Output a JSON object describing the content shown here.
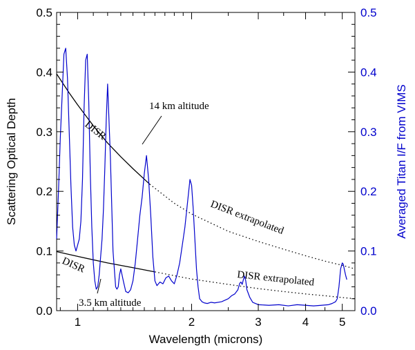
{
  "chart_data": {
    "type": "line",
    "xlabel": "Wavelength (microns)",
    "ylabel": "Scattering Optical Depth",
    "y2label": "Averaged Titan I/F from VIMS",
    "x_scale": "log",
    "xlim": [
      0.88,
      5.4
    ],
    "ylim": [
      0,
      0.5
    ],
    "y2lim": [
      0,
      0.5
    ],
    "x_ticks": [
      1,
      2,
      3,
      4,
      5
    ],
    "x_tick_labels": [
      "1",
      "2",
      "3",
      "4",
      "5"
    ],
    "y_ticks": [
      0.0,
      0.1,
      0.2,
      0.3,
      0.4,
      0.5
    ],
    "y_tick_labels": [
      "0.0",
      "0.1",
      "0.2",
      "0.3",
      "0.4",
      "0.5"
    ],
    "y2_ticks": [
      0.0,
      0.1,
      0.2,
      0.3,
      0.4,
      0.5
    ],
    "y2_tick_labels": [
      "0.0",
      "0.1",
      "0.2",
      "0.3",
      "0.4",
      "0.5"
    ],
    "grid": false,
    "colors": {
      "axis_left": "#000000",
      "axis_right": "#0000cc",
      "vims": "#0000cc",
      "disr": "#000000"
    },
    "series": [
      {
        "axis": "left",
        "style": "solid",
        "x": [
          0.88,
          0.95,
          1.0,
          1.1,
          1.2,
          1.3,
          1.4,
          1.55
        ],
        "y": [
          0.397,
          0.365,
          0.345,
          0.31,
          0.281,
          0.258,
          0.238,
          0.212
        ]
      },
      {
        "axis": "left",
        "style": "dotted",
        "x": [
          1.55,
          1.8,
          2.0,
          2.5,
          3.0,
          3.5,
          4.0,
          4.5,
          5.0,
          5.4
        ],
        "y": [
          0.212,
          0.18,
          0.162,
          0.133,
          0.116,
          0.103,
          0.092,
          0.083,
          0.076,
          0.07
        ]
      },
      {
        "axis": "left",
        "style": "solid",
        "x": [
          0.88,
          1.0,
          1.2,
          1.4,
          1.6
        ],
        "y": [
          0.099,
          0.091,
          0.08,
          0.072,
          0.065
        ]
      },
      {
        "axis": "left",
        "style": "dotted",
        "x": [
          1.6,
          2.0,
          2.5,
          3.0,
          3.5,
          4.0,
          4.5,
          5.0,
          5.4
        ],
        "y": [
          0.065,
          0.053,
          0.044,
          0.037,
          0.032,
          0.028,
          0.025,
          0.022,
          0.02
        ]
      },
      {
        "axis": "right",
        "style": "solid",
        "x": [
          0.88,
          0.89,
          0.9,
          0.91,
          0.92,
          0.93,
          0.94,
          0.95,
          0.96,
          0.97,
          0.98,
          0.99,
          1.0,
          1.01,
          1.02,
          1.03,
          1.04,
          1.05,
          1.06,
          1.07,
          1.08,
          1.09,
          1.1,
          1.11,
          1.12,
          1.13,
          1.14,
          1.15,
          1.16,
          1.17,
          1.18,
          1.19,
          1.2,
          1.22,
          1.24,
          1.26,
          1.27,
          1.28,
          1.29,
          1.3,
          1.32,
          1.34,
          1.36,
          1.38,
          1.4,
          1.42,
          1.44,
          1.46,
          1.48,
          1.5,
          1.52,
          1.54,
          1.56,
          1.58,
          1.6,
          1.62,
          1.65,
          1.68,
          1.71,
          1.74,
          1.77,
          1.8,
          1.83,
          1.86,
          1.89,
          1.92,
          1.95,
          1.98,
          2.0,
          2.02,
          2.04,
          2.06,
          2.08,
          2.1,
          2.13,
          2.16,
          2.2,
          2.25,
          2.3,
          2.4,
          2.5,
          2.55,
          2.6,
          2.65,
          2.68,
          2.7,
          2.72,
          2.74,
          2.76,
          2.78,
          2.8,
          2.85,
          2.9,
          3.0,
          3.2,
          3.4,
          3.6,
          3.8,
          4.0,
          4.2,
          4.4,
          4.6,
          4.7,
          4.8,
          4.85,
          4.9,
          4.95,
          5.0,
          5.03,
          5.06,
          5.1,
          5.14
        ],
        "y": [
          0.12,
          0.2,
          0.29,
          0.36,
          0.43,
          0.44,
          0.39,
          0.3,
          0.21,
          0.14,
          0.11,
          0.1,
          0.11,
          0.12,
          0.15,
          0.22,
          0.34,
          0.42,
          0.43,
          0.35,
          0.23,
          0.14,
          0.08,
          0.05,
          0.036,
          0.04,
          0.06,
          0.09,
          0.12,
          0.17,
          0.24,
          0.32,
          0.38,
          0.26,
          0.1,
          0.04,
          0.036,
          0.04,
          0.06,
          0.07,
          0.05,
          0.032,
          0.03,
          0.035,
          0.05,
          0.08,
          0.12,
          0.16,
          0.19,
          0.23,
          0.26,
          0.22,
          0.16,
          0.09,
          0.05,
          0.042,
          0.048,
          0.045,
          0.055,
          0.058,
          0.05,
          0.045,
          0.06,
          0.08,
          0.11,
          0.14,
          0.18,
          0.22,
          0.21,
          0.17,
          0.12,
          0.07,
          0.04,
          0.02,
          0.015,
          0.013,
          0.012,
          0.014,
          0.013,
          0.015,
          0.02,
          0.025,
          0.028,
          0.035,
          0.046,
          0.048,
          0.044,
          0.052,
          0.058,
          0.05,
          0.035,
          0.022,
          0.014,
          0.01,
          0.009,
          0.01,
          0.008,
          0.01,
          0.009,
          0.008,
          0.009,
          0.01,
          0.012,
          0.015,
          0.02,
          0.04,
          0.07,
          0.08,
          0.078,
          0.07,
          0.06,
          0.052
        ]
      }
    ],
    "annotations": [
      {
        "text": "14 km altitude"
      },
      {
        "text": "DISR"
      },
      {
        "text": "DISR extrapolated"
      },
      {
        "text": "DISR"
      },
      {
        "text": "DISR extrapolated"
      },
      {
        "text": "3.5 km altitude"
      }
    ]
  }
}
